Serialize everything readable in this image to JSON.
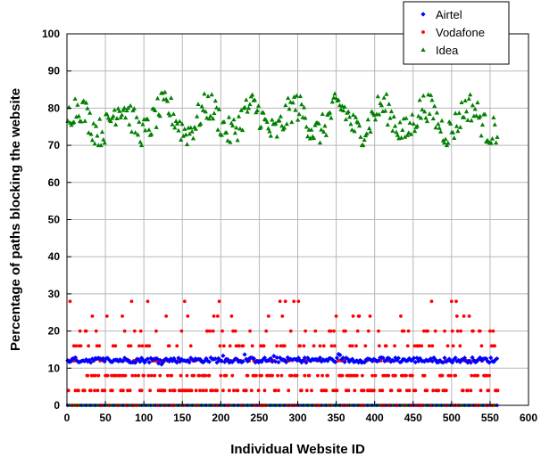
{
  "chart_data": {
    "type": "scatter",
    "title": "",
    "xlabel": "Individual Website ID",
    "ylabel": "Percentage of paths blocking the website",
    "xlim": [
      0,
      600
    ],
    "ylim": [
      0,
      100
    ],
    "x_ticks": [
      "0",
      "50",
      "100",
      "150",
      "200",
      "250",
      "300",
      "350",
      "400",
      "450",
      "500",
      "550",
      "600"
    ],
    "y_ticks": [
      "0",
      "10",
      "20",
      "30",
      "40",
      "50",
      "60",
      "70",
      "80",
      "90",
      "100"
    ],
    "grid": true,
    "legend_position": "top-right",
    "series": [
      {
        "name": "Airtel",
        "color": "#0000ff",
        "marker": "diamond",
        "n": 560,
        "x_range": [
          1,
          560
        ],
        "value_range": [
          11,
          14
        ],
        "approx_values": [
          12.5,
          12.2,
          12.0,
          12.7,
          13.4,
          12.8,
          12.1,
          11.6,
          12.4,
          12.0
        ]
      },
      {
        "name": "Vodafone",
        "color": "#ff0000",
        "marker": "circle",
        "n": 560,
        "x_range": [
          1,
          560
        ],
        "value_range": [
          0,
          28
        ],
        "levels": [
          0,
          4,
          8,
          12,
          16,
          20,
          24,
          28
        ]
      },
      {
        "name": "Idea",
        "color": "#008000",
        "marker": "triangle",
        "n": 560,
        "x_range": [
          1,
          560
        ],
        "value_range": [
          70,
          86
        ],
        "approx_values": [
          76,
          80,
          74,
          82,
          73,
          78,
          75,
          84,
          77,
          72
        ]
      }
    ]
  }
}
